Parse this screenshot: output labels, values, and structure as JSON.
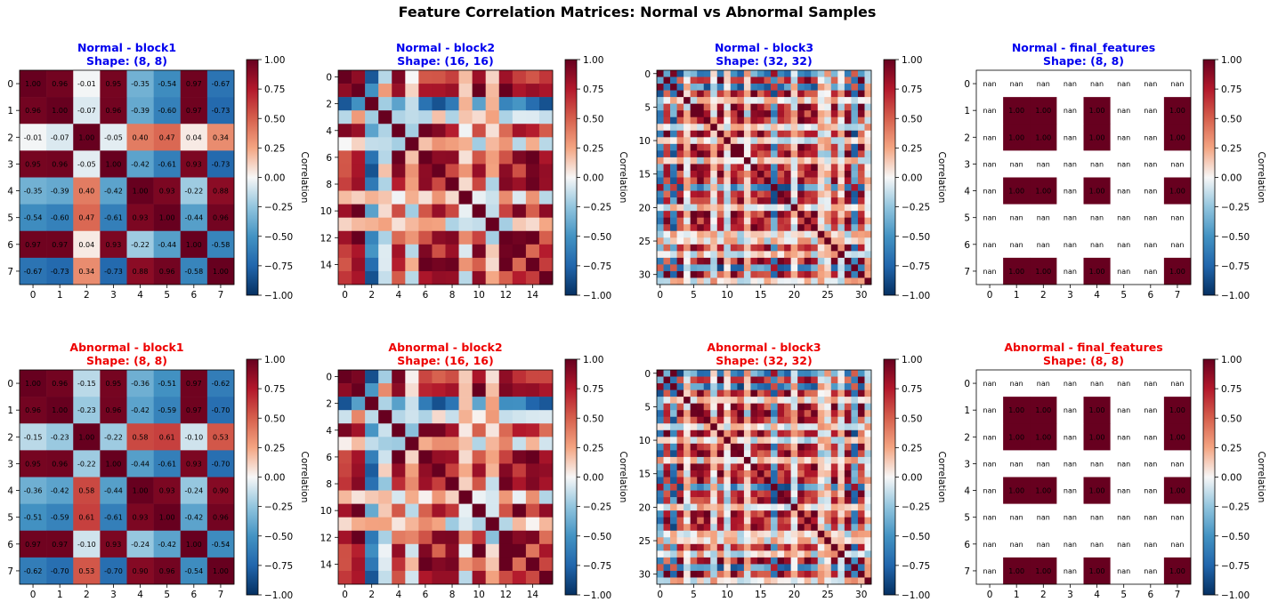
{
  "figure_title": "Feature Correlation Matrices: Normal vs Abnormal Samples",
  "colorbar": {
    "label": "Correlation",
    "ticks": [
      "1.00",
      "0.75",
      "0.50",
      "0.25",
      "0.00",
      "−0.25",
      "−0.50",
      "−0.75",
      "−1.00"
    ],
    "colormap": "RdBu_r"
  },
  "colors": {
    "normal_title": "#0000ee",
    "abnormal_title": "#ee0000"
  },
  "chart_data": [
    {
      "type": "heatmap",
      "group": "Normal",
      "title": "Normal - block1",
      "subtitle": "Shape: (8, 8)",
      "size": 8,
      "vmin": -1,
      "vmax": 1,
      "annotated": true,
      "ticks": [
        0,
        1,
        2,
        3,
        4,
        5,
        6,
        7
      ],
      "values": [
        [
          1.0,
          0.96,
          -0.01,
          0.95,
          -0.35,
          -0.54,
          0.97,
          -0.67
        ],
        [
          0.96,
          1.0,
          -0.07,
          0.96,
          -0.39,
          -0.6,
          0.97,
          -0.73
        ],
        [
          -0.01,
          -0.07,
          1.0,
          -0.05,
          0.4,
          0.47,
          0.04,
          0.34
        ],
        [
          0.95,
          0.96,
          -0.05,
          1.0,
          -0.42,
          -0.61,
          0.93,
          -0.73
        ],
        [
          -0.35,
          -0.39,
          0.4,
          -0.42,
          1.0,
          0.93,
          -0.22,
          0.88
        ],
        [
          -0.54,
          -0.6,
          0.47,
          -0.61,
          0.93,
          1.0,
          -0.44,
          0.96
        ],
        [
          0.97,
          0.97,
          0.04,
          0.93,
          -0.22,
          -0.44,
          1.0,
          -0.58
        ],
        [
          -0.67,
          -0.73,
          0.34,
          -0.73,
          0.88,
          0.96,
          -0.58,
          1.0
        ]
      ]
    },
    {
      "type": "heatmap",
      "group": "Normal",
      "title": "Normal - block2",
      "subtitle": "Shape: (16, 16)",
      "size": 16,
      "vmin": -1,
      "vmax": 1,
      "annotated": false,
      "pattern": "p16",
      "ticks": [
        0,
        2,
        4,
        6,
        8,
        10,
        12,
        14
      ]
    },
    {
      "type": "heatmap",
      "group": "Normal",
      "title": "Normal - block3",
      "subtitle": "Shape: (32, 32)",
      "size": 32,
      "vmin": -1,
      "vmax": 1,
      "annotated": false,
      "pattern": "p32",
      "ticks": [
        0,
        5,
        10,
        15,
        20,
        25,
        30
      ]
    },
    {
      "type": "heatmap",
      "group": "Normal",
      "title": "Normal - final_features",
      "subtitle": "Shape: (8, 8)",
      "size": 8,
      "vmin": -1,
      "vmax": 1,
      "annotated": true,
      "ticks": [
        0,
        1,
        2,
        3,
        4,
        5,
        6,
        7
      ],
      "values": [
        [
          null,
          null,
          null,
          null,
          null,
          null,
          null,
          null
        ],
        [
          null,
          1.0,
          1.0,
          null,
          1.0,
          null,
          null,
          1.0
        ],
        [
          null,
          1.0,
          1.0,
          null,
          1.0,
          null,
          null,
          1.0
        ],
        [
          null,
          null,
          null,
          null,
          null,
          null,
          null,
          null
        ],
        [
          null,
          1.0,
          1.0,
          null,
          1.0,
          null,
          null,
          1.0
        ],
        [
          null,
          null,
          null,
          null,
          null,
          null,
          null,
          null
        ],
        [
          null,
          null,
          null,
          null,
          null,
          null,
          null,
          null
        ],
        [
          null,
          1.0,
          1.0,
          null,
          1.0,
          null,
          null,
          1.0
        ]
      ]
    },
    {
      "type": "heatmap",
      "group": "Abnormal",
      "title": "Abnormal - block1",
      "subtitle": "Shape: (8, 8)",
      "size": 8,
      "vmin": -1,
      "vmax": 1,
      "annotated": true,
      "ticks": [
        0,
        1,
        2,
        3,
        4,
        5,
        6,
        7
      ],
      "values": [
        [
          1.0,
          0.96,
          -0.15,
          0.95,
          -0.36,
          -0.51,
          0.97,
          -0.62
        ],
        [
          0.96,
          1.0,
          -0.23,
          0.96,
          -0.42,
          -0.59,
          0.97,
          -0.7
        ],
        [
          -0.15,
          -0.23,
          1.0,
          -0.22,
          0.58,
          0.61,
          -0.1,
          0.53
        ],
        [
          0.95,
          0.96,
          -0.22,
          1.0,
          -0.44,
          -0.61,
          0.93,
          -0.7
        ],
        [
          -0.36,
          -0.42,
          0.58,
          -0.44,
          1.0,
          0.93,
          -0.24,
          0.9
        ],
        [
          -0.51,
          -0.59,
          0.61,
          -0.61,
          0.93,
          1.0,
          -0.42,
          0.96
        ],
        [
          0.97,
          0.97,
          -0.1,
          0.93,
          -0.24,
          -0.42,
          1.0,
          -0.54
        ],
        [
          -0.62,
          -0.7,
          0.53,
          -0.7,
          0.9,
          0.96,
          -0.54,
          1.0
        ]
      ]
    },
    {
      "type": "heatmap",
      "group": "Abnormal",
      "title": "Abnormal - block2",
      "subtitle": "Shape: (16, 16)",
      "size": 16,
      "vmin": -1,
      "vmax": 1,
      "annotated": false,
      "pattern": "p16",
      "ticks": [
        0,
        2,
        4,
        6,
        8,
        10,
        12,
        14
      ]
    },
    {
      "type": "heatmap",
      "group": "Abnormal",
      "title": "Abnormal - block3",
      "subtitle": "Shape: (32, 32)",
      "size": 32,
      "vmin": -1,
      "vmax": 1,
      "annotated": false,
      "pattern": "p32",
      "ticks": [
        0,
        5,
        10,
        15,
        20,
        25,
        30
      ]
    },
    {
      "type": "heatmap",
      "group": "Abnormal",
      "title": "Abnormal - final_features",
      "subtitle": "Shape: (8, 8)",
      "size": 8,
      "vmin": -1,
      "vmax": 1,
      "annotated": true,
      "ticks": [
        0,
        1,
        2,
        3,
        4,
        5,
        6,
        7
      ],
      "values": [
        [
          null,
          null,
          null,
          null,
          null,
          null,
          null,
          null
        ],
        [
          null,
          1.0,
          1.0,
          null,
          1.0,
          null,
          null,
          1.0
        ],
        [
          null,
          1.0,
          1.0,
          null,
          1.0,
          null,
          null,
          1.0
        ],
        [
          null,
          null,
          null,
          null,
          null,
          null,
          null,
          null
        ],
        [
          null,
          1.0,
          1.0,
          null,
          1.0,
          null,
          null,
          1.0
        ],
        [
          null,
          null,
          null,
          null,
          null,
          null,
          null,
          null
        ],
        [
          null,
          null,
          null,
          null,
          null,
          null,
          null,
          null
        ],
        [
          null,
          1.0,
          1.0,
          null,
          1.0,
          null,
          null,
          1.0
        ]
      ]
    }
  ]
}
